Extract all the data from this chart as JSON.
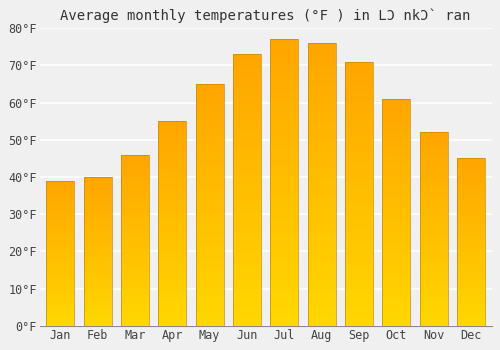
{
  "title": "Average monthly temperatures (°F ) in LƆ nkƆ̀ ran",
  "months": [
    "Jan",
    "Feb",
    "Mar",
    "Apr",
    "May",
    "Jun",
    "Jul",
    "Aug",
    "Sep",
    "Oct",
    "Nov",
    "Dec"
  ],
  "values": [
    39,
    40,
    46,
    55,
    65,
    73,
    77,
    76,
    71,
    61,
    52,
    45
  ],
  "bar_color_bottom": "#FFD700",
  "bar_color_top": "#FFA500",
  "bar_edge_color": "#CC8800",
  "ylim": [
    0,
    80
  ],
  "yticks": [
    0,
    10,
    20,
    30,
    40,
    50,
    60,
    70,
    80
  ],
  "ylabel_suffix": "°F",
  "background_color": "#f0f0f0",
  "plot_bg_color": "#f0f0f0",
  "grid_color": "#ffffff",
  "title_fontsize": 10,
  "tick_fontsize": 8.5,
  "bar_width": 0.75
}
